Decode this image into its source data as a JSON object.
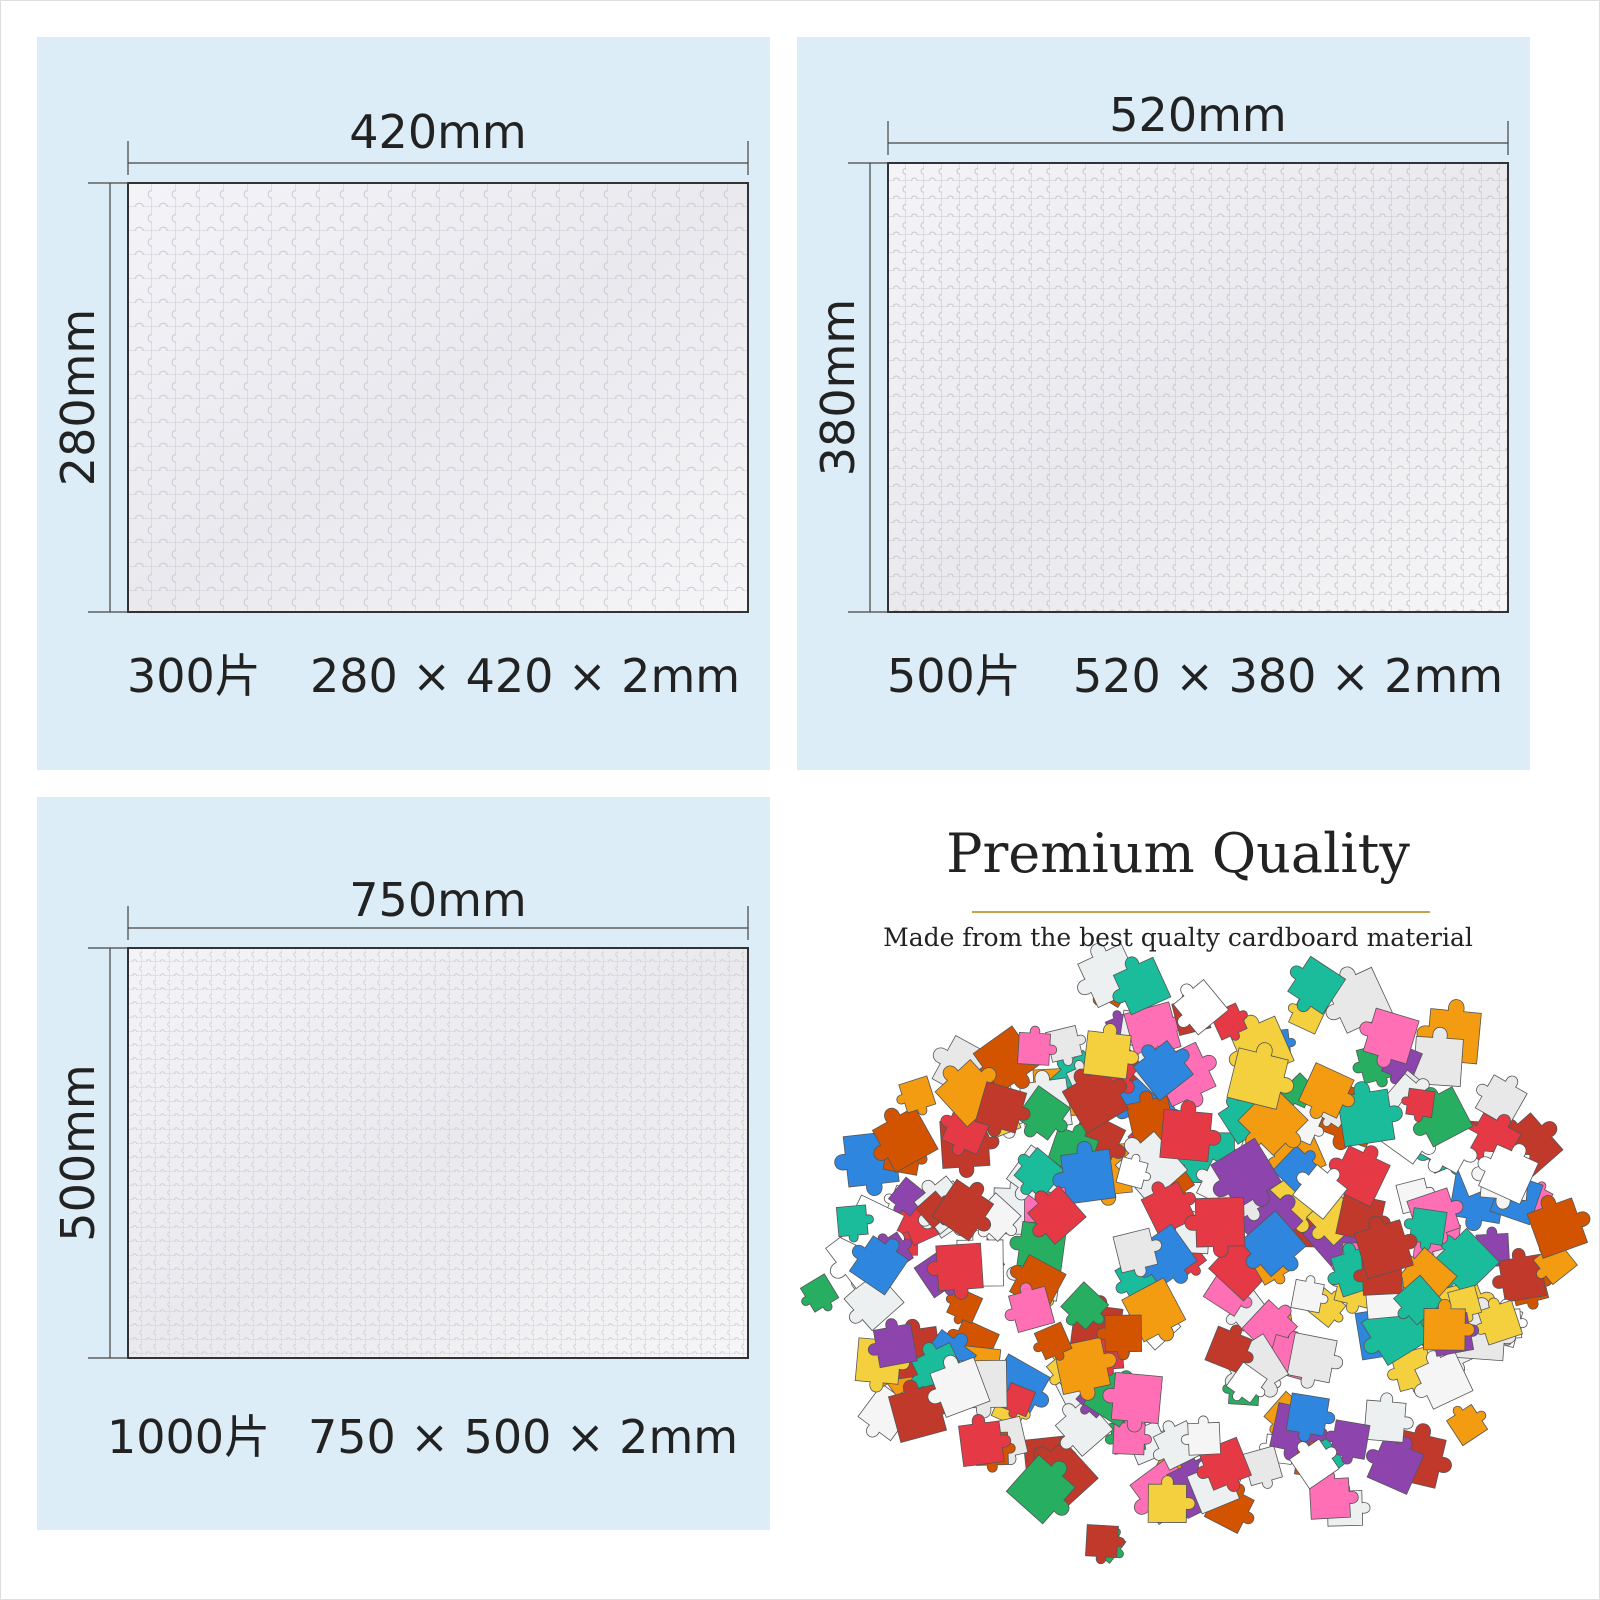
{
  "panels": [
    {
      "width_label": "420mm",
      "height_label": "280mm",
      "pieces": "300片",
      "size": "280 × 420 × 2mm"
    },
    {
      "width_label": "520mm",
      "height_label": "380mm",
      "pieces": "500片",
      "size": "520 × 380 × 2mm"
    },
    {
      "width_label": "750mm",
      "height_label": "500mm",
      "pieces": "1000片",
      "size": "750 × 500 × 2mm"
    }
  ],
  "feature": {
    "title": "Premium Quality",
    "subtitle": "Made from the best qualty cardboard material"
  }
}
